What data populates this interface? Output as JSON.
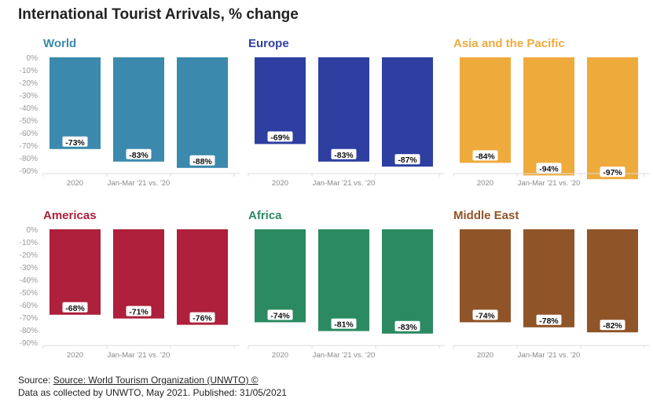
{
  "title": "International Tourist Arrivals, % change",
  "chart_data": [
    {
      "type": "bar",
      "title": "World",
      "color": "#3b89ad",
      "categories": [
        "2020",
        "Jan-Mar '21 vs. '20",
        ""
      ],
      "values": [
        -73,
        -83,
        -88
      ],
      "data_labels": [
        "-73%",
        "-83%",
        "-88%"
      ],
      "ylim": [
        -90,
        0
      ],
      "yticks": [
        "0%",
        "-10%",
        "-20%",
        "-30%",
        "-40%",
        "-50%",
        "-60%",
        "-70%",
        "-80%",
        "-90%"
      ],
      "grid": false
    },
    {
      "type": "bar",
      "title": "Europe",
      "color": "#2e3fa1",
      "categories": [
        "2020",
        "Jan-Mar '21 vs. '20",
        ""
      ],
      "values": [
        -69,
        -83,
        -87
      ],
      "data_labels": [
        "-69%",
        "-83%",
        "-87%"
      ],
      "ylim": [
        -90,
        0
      ],
      "grid": false
    },
    {
      "type": "bar",
      "title": "Asia and the Pacific",
      "color": "#eeab3c",
      "categories": [
        "2020",
        "Jan-Mar '21 vs. '20",
        ""
      ],
      "values": [
        -84,
        -94,
        -97
      ],
      "data_labels": [
        "-84%",
        "-94%",
        "-97%"
      ],
      "ylim": [
        -90,
        0
      ],
      "grid": false
    },
    {
      "type": "bar",
      "title": "Americas",
      "color": "#ae203b",
      "categories": [
        "2020",
        "Jan-Mar '21 vs. '20",
        ""
      ],
      "values": [
        -68,
        -71,
        -76
      ],
      "data_labels": [
        "-68%",
        "-71%",
        "-76%"
      ],
      "ylim": [
        -90,
        0
      ],
      "yticks": [
        "0%",
        "-10%",
        "-20%",
        "-30%",
        "-40%",
        "-50%",
        "-60%",
        "-70%",
        "-80%",
        "-90%"
      ],
      "grid": false
    },
    {
      "type": "bar",
      "title": "Africa",
      "color": "#2b8a62",
      "categories": [
        "2020",
        "Jan-Mar '21 vs. '20",
        ""
      ],
      "values": [
        -74,
        -81,
        -83
      ],
      "data_labels": [
        "-74%",
        "-81%",
        "-83%"
      ],
      "ylim": [
        -90,
        0
      ],
      "grid": false
    },
    {
      "type": "bar",
      "title": "Middle East",
      "color": "#8f5428",
      "categories": [
        "2020",
        "Jan-Mar '21 vs. '20",
        ""
      ],
      "values": [
        -74,
        -78,
        -82
      ],
      "data_labels": [
        "-74%",
        "-78%",
        "-82%"
      ],
      "ylim": [
        -90,
        0
      ],
      "grid": false
    }
  ],
  "footer": {
    "source_prefix": "Source: ",
    "source_link": "Source: World Tourism Organization (UNWTO) ©",
    "note": "Data as collected by UNWTO, May 2021. Published: 31/05/2021"
  }
}
